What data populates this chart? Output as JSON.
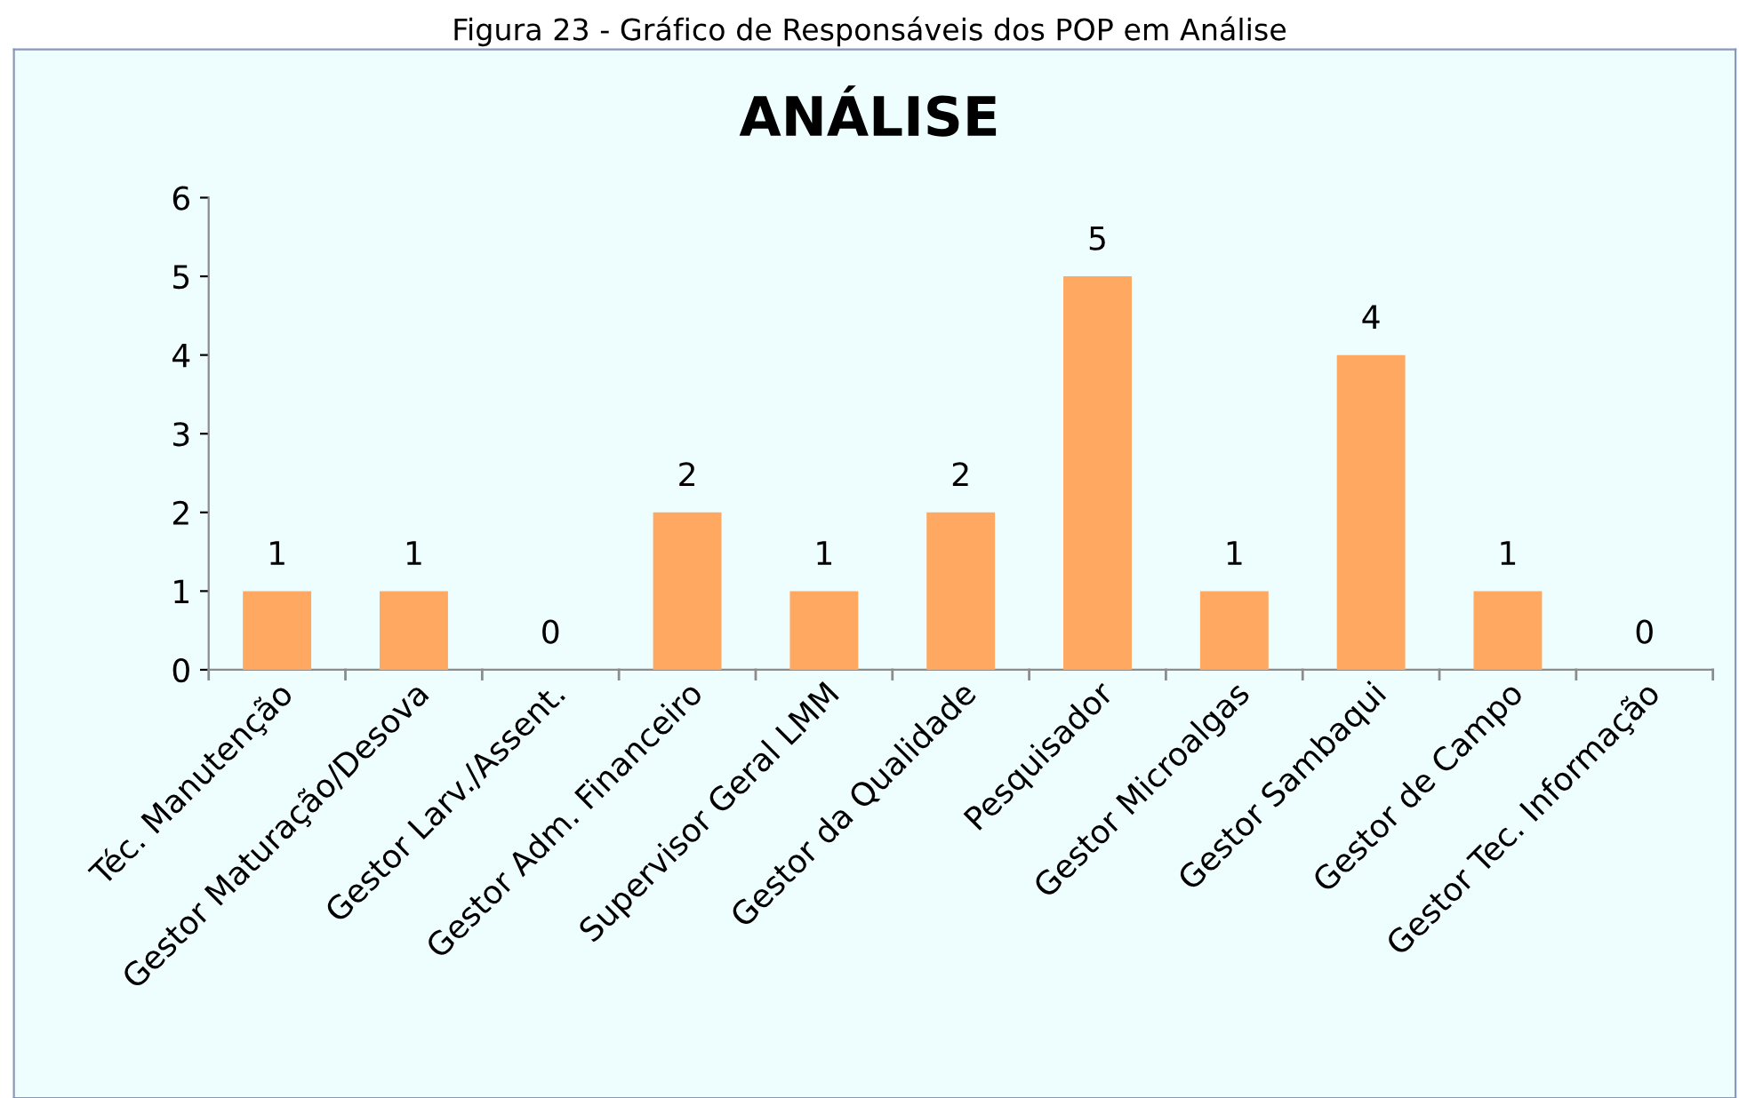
{
  "chart_data": {
    "type": "bar",
    "title": "ANÁLISE",
    "categories": [
      "Téc. Manutenção",
      "Gestor Maturação/Desova",
      "Gestor Larv./Assent.",
      "Gestor Adm. Financeiro",
      "Supervisor Geral LMM",
      "Gestor da Qualidade",
      "Pesquisador",
      "Gestor Microalgas",
      "Gestor Sambaqui",
      "Gestor de Campo",
      "Gestor Tec. Informação"
    ],
    "values": [
      1,
      1,
      0,
      2,
      1,
      2,
      5,
      1,
      4,
      1,
      0
    ],
    "color": "#ffa862",
    "ylim": [
      0,
      6
    ],
    "yticks": [
      0,
      1,
      2,
      3,
      4,
      5,
      6
    ],
    "data_labels": true,
    "grid": false,
    "legend": false,
    "annotations": [
      "Figura 23 - Gráfico de Responsáveis dos POP em Análise"
    ]
  }
}
